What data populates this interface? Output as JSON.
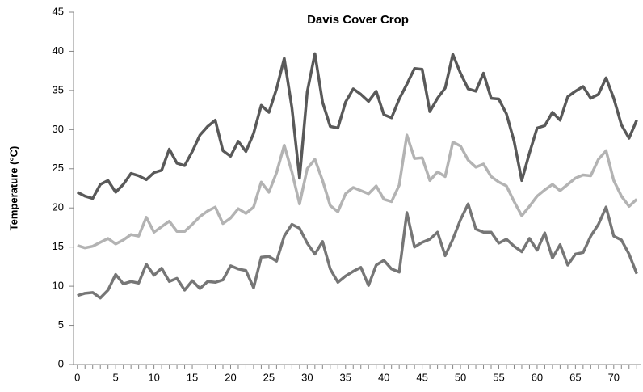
{
  "chart_data": {
    "type": "line",
    "title": "Davis Cover Crop",
    "y_label": "Temperature (°C)",
    "x": [
      0,
      1,
      2,
      3,
      4,
      5,
      6,
      7,
      8,
      9,
      10,
      11,
      12,
      13,
      14,
      15,
      16,
      17,
      18,
      19,
      20,
      21,
      22,
      23,
      24,
      25,
      26,
      27,
      28,
      29,
      30,
      31,
      32,
      33,
      34,
      35,
      36,
      37,
      38,
      39,
      40,
      41,
      42,
      43,
      44,
      45,
      46,
      47,
      48,
      49,
      50,
      51,
      52,
      53,
      54,
      55,
      56,
      57,
      58,
      59,
      60,
      61,
      62,
      63,
      64,
      65,
      66,
      67,
      68,
      69,
      70,
      71,
      72,
      73
    ],
    "xlim": [
      -0.5,
      73.5
    ],
    "xticks": [
      0,
      5,
      10,
      15,
      20,
      25,
      30,
      35,
      40,
      45,
      50,
      55,
      60,
      65,
      70
    ],
    "ylim": [
      0,
      45
    ],
    "yticks": [
      0,
      5,
      10,
      15,
      20,
      25,
      30,
      35,
      40,
      45
    ],
    "grid": false,
    "series": [
      {
        "color": "#595959",
        "values": [
          22,
          21.5,
          21.2,
          23,
          23.5,
          22,
          23,
          24.4,
          24.1,
          23.6,
          24.5,
          24.8,
          27.5,
          25.7,
          25.4,
          27.2,
          29.3,
          30.4,
          31.2,
          27.3,
          26.6,
          28.5,
          27.2,
          29.5,
          33.1,
          32.2,
          35.2,
          39.1,
          32.8,
          23.8,
          34.8,
          39.7,
          33.5,
          30.4,
          30.2,
          33.5,
          35.2,
          34.5,
          33.6,
          34.9,
          31.9,
          31.5,
          33.9,
          35.8,
          37.8,
          37.7,
          32.3,
          34,
          35.3,
          39.6,
          37.2,
          35.2,
          34.9,
          37.2,
          34,
          33.9,
          32,
          28.5,
          23.5,
          27,
          30.2,
          30.5,
          32.2,
          31.2,
          34.2,
          34.9,
          35.5,
          34,
          34.5,
          36.6,
          34,
          30.6,
          28.9,
          31.2
        ]
      },
      {
        "color": "#b3b3b3",
        "values": [
          15.2,
          14.9,
          15.1,
          15.6,
          16.1,
          15.4,
          15.9,
          16.6,
          16.4,
          18.8,
          16.9,
          17.6,
          18.3,
          17,
          17,
          17.9,
          18.9,
          19.6,
          20.1,
          18,
          18.7,
          19.9,
          19.3,
          20.1,
          23.3,
          22,
          24.5,
          28,
          24.6,
          20.5,
          25,
          26.2,
          23.5,
          20.3,
          19.5,
          21.8,
          22.6,
          22.2,
          21.8,
          22.8,
          21.1,
          20.8,
          22.9,
          29.3,
          26.3,
          26.4,
          23.5,
          24.6,
          24,
          28.4,
          27.9,
          26.1,
          25.2,
          25.6,
          24,
          23.3,
          22.8,
          20.8,
          19,
          20.2,
          21.5,
          22.3,
          23,
          22.2,
          23,
          23.8,
          24.2,
          24.1,
          26.2,
          27.3,
          23.5,
          21.5,
          20.2,
          21.1
        ]
      },
      {
        "color": "#767676",
        "values": [
          8.8,
          9.1,
          9.2,
          8.5,
          9.5,
          11.5,
          10.3,
          10.6,
          10.4,
          12.8,
          11.4,
          12.3,
          10.6,
          11,
          9.5,
          10.7,
          9.7,
          10.6,
          10.5,
          10.8,
          12.6,
          12.2,
          12,
          9.8,
          13.7,
          13.8,
          13.2,
          16.4,
          17.9,
          17.4,
          15.5,
          14.1,
          15.7,
          12.2,
          10.5,
          11.3,
          11.9,
          12.4,
          10.1,
          12.7,
          13.3,
          12.2,
          11.8,
          19.4,
          15,
          15.6,
          16,
          16.9,
          13.9,
          16,
          18.5,
          20.5,
          17.3,
          16.9,
          16.9,
          15.5,
          16,
          15.1,
          14.4,
          16.1,
          14.6,
          16.8,
          13.6,
          15.3,
          12.7,
          14.1,
          14.3,
          16.4,
          17.9,
          20.1,
          16.4,
          15.9,
          14.1,
          11.6
        ]
      }
    ]
  }
}
